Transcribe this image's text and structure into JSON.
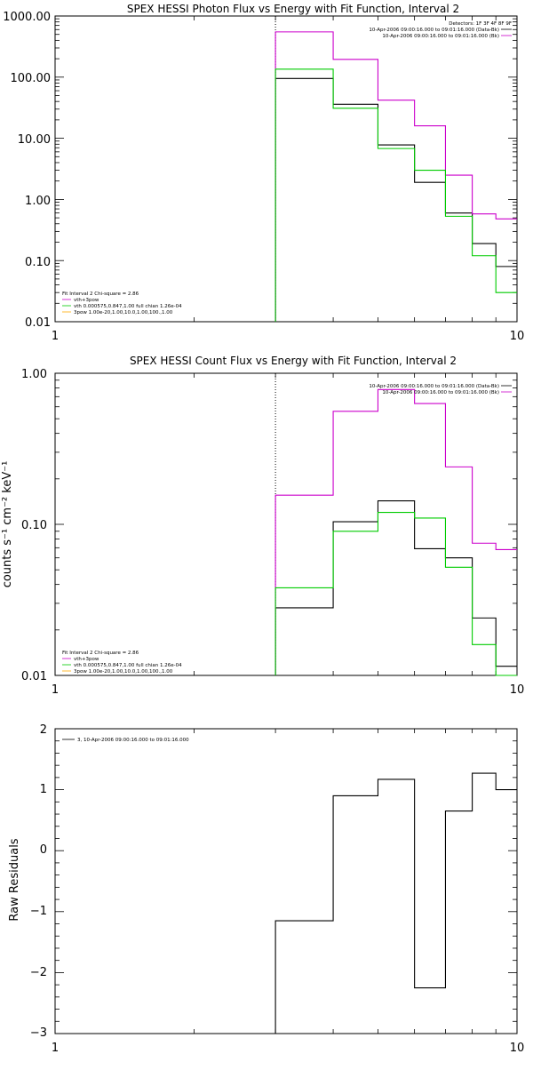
{
  "colors": {
    "black": "#000000",
    "magenta": "#cc00cc",
    "green": "#00cc00",
    "orange": "#ffaa00"
  },
  "chart_data": [
    {
      "type": "line",
      "title": "SPEX HESSI Photon Flux vs Energy with Fit Function, Interval 2",
      "xlabel": "",
      "ylabel": "",
      "xscale": "log",
      "yscale": "log",
      "xlim": [
        1,
        10
      ],
      "ylim": [
        0.01,
        1000
      ],
      "xticks": [
        "1",
        "10"
      ],
      "yticks": [
        "1000.00",
        "100.00",
        "10.00",
        "1.00",
        "0.10",
        "0.01"
      ],
      "vline": 3,
      "edges": [
        3,
        4,
        5,
        6,
        7,
        8,
        9,
        10
      ],
      "series": [
        {
          "values": [
            95,
            36,
            7.8,
            1.9,
            0.6,
            0.19,
            0.08
          ],
          "color": "black"
        },
        {
          "values": [
            550,
            195,
            42,
            16,
            2.5,
            0.58,
            0.48
          ],
          "color": "magenta"
        },
        {
          "values": [
            135,
            31,
            6.8,
            3.0,
            0.53,
            0.12,
            0.03
          ],
          "color": "green"
        }
      ],
      "info": {
        "line1": "Detectors: 1F 3F 4F 8F 9F",
        "line2": "10-Apr-2006 09:00:16.000 to 09:01:16.000 (Data-Bk)",
        "line3": "10-Apr-2006 09:00:16.000 to 09:01:16.000 (Bk)"
      },
      "legend": {
        "header": "Fit Interval 2   Chi-square = 2.86",
        "items": [
          {
            "label": "vth+3pow",
            "color": "magenta"
          },
          {
            "label": "vth 0.000575,0.847,1.00  full chian 1.26e-04",
            "color": "green"
          },
          {
            "label": "3pow 1.00e-20,1.00,10.0,1.00,100.,1.00",
            "color": "orange"
          }
        ]
      }
    },
    {
      "type": "line",
      "title": "SPEX HESSI Count Flux vs Energy with Fit Function, Interval 2",
      "xlabel": "",
      "ylabel": "counts s⁻¹ cm⁻² keV⁻¹",
      "xscale": "log",
      "yscale": "log",
      "xlim": [
        1,
        10
      ],
      "ylim": [
        0.01,
        1.0
      ],
      "xticks": [
        "1",
        "10"
      ],
      "yticks": [
        "1.00",
        "0.10",
        "0.01"
      ],
      "vline": 3,
      "edges": [
        3,
        4,
        5,
        6,
        7,
        8,
        9,
        10
      ],
      "series": [
        {
          "values": [
            0.028,
            0.104,
            0.143,
            0.069,
            0.06,
            0.024,
            0.0115
          ],
          "color": "black"
        },
        {
          "values": [
            0.156,
            0.56,
            0.78,
            0.63,
            0.24,
            0.075,
            0.068
          ],
          "color": "magenta"
        },
        {
          "values": [
            0.038,
            0.09,
            0.12,
            0.11,
            0.052,
            0.016,
            0.0095
          ],
          "color": "green"
        }
      ],
      "info": {
        "line2": "10-Apr-2006 09:00:16.000 to 09:01:16.000 (Data-Bk)",
        "line3": "10-Apr-2006 09:00:16.000 to 09:01:16.000 (Bk)"
      },
      "legend": {
        "header": "Fit Interval 2   Chi-square = 2.86",
        "items": [
          {
            "label": "vth+3pow",
            "color": "magenta"
          },
          {
            "label": "vth 0.000575,0.847,1.00  full chian 1.26e-04",
            "color": "green"
          },
          {
            "label": "3pow 1.00e-20,1.00,10.0,1.00,100.,1.00",
            "color": "orange"
          }
        ]
      }
    },
    {
      "type": "line",
      "title": "",
      "xlabel": "",
      "ylabel": "Raw Residuals",
      "xscale": "log",
      "yscale": "linear",
      "xlim": [
        1,
        10
      ],
      "ylim": [
        -3,
        2
      ],
      "xticks": [
        "1",
        "10"
      ],
      "yticks": [
        "2",
        "1",
        "0",
        "−1",
        "−2",
        "−3"
      ],
      "edges": [
        3,
        4,
        5,
        6,
        7,
        8,
        9,
        10
      ],
      "series": [
        {
          "values": [
            -1.15,
            0.9,
            1.17,
            -2.25,
            0.65,
            1.27,
            1.0
          ],
          "color": "black"
        }
      ],
      "legend": {
        "items": [
          {
            "label": "3, 10-Apr-2006 09:00:16.000 to 09:01:16.000",
            "color": "black"
          }
        ]
      }
    }
  ]
}
